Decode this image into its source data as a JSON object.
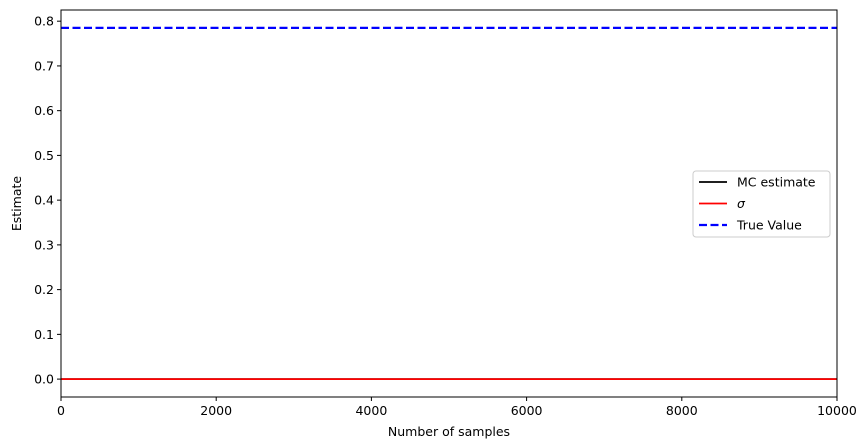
{
  "chart_data": {
    "type": "line",
    "title": "",
    "xlabel": "Number of samples",
    "ylabel": "Estimate",
    "xlim": [
      0,
      10000
    ],
    "ylim": [
      -0.04,
      0.825
    ],
    "xticks": [
      0,
      2000,
      4000,
      6000,
      8000,
      10000
    ],
    "yticks": [
      0.0,
      0.1,
      0.2,
      0.3,
      0.4,
      0.5,
      0.6,
      0.7,
      0.8
    ],
    "xtick_labels": [
      "0",
      "2000",
      "4000",
      "6000",
      "8000",
      "10000"
    ],
    "ytick_labels": [
      "0.0",
      "0.1",
      "0.2",
      "0.3",
      "0.4",
      "0.5",
      "0.6",
      "0.7",
      "0.8"
    ],
    "grid": false,
    "legend_position": "center-right",
    "series": [
      {
        "name": "MC estimate",
        "color": "#000000",
        "style": "solid",
        "x": [
          0,
          10000
        ],
        "y": [
          0.0,
          0.0
        ]
      },
      {
        "name": "σ",
        "color": "#ff0000",
        "style": "solid",
        "x": [
          0,
          10000
        ],
        "y": [
          0.0,
          0.0
        ]
      },
      {
        "name": "True Value",
        "color": "#0000ff",
        "style": "dashed",
        "x": [
          0,
          10000
        ],
        "y": [
          0.785,
          0.785
        ]
      }
    ]
  }
}
